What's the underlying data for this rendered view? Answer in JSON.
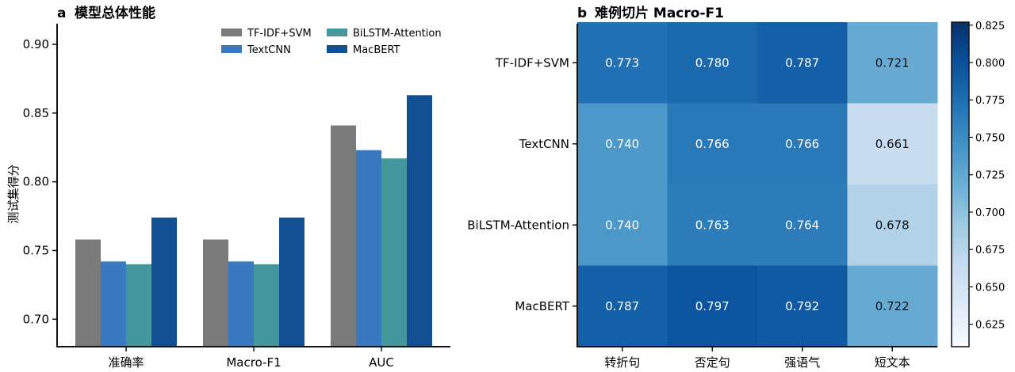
{
  "chart_data": [
    {
      "type": "bar",
      "panel_letter": "a",
      "title": "模型总体性能",
      "ylabel": "测试集得分",
      "categories": [
        "准确率",
        "Macro-F1",
        "AUC"
      ],
      "ylim": [
        0.68,
        0.915
      ],
      "yticks": [
        0.7,
        0.75,
        0.8,
        0.85,
        0.9
      ],
      "ytick_labels": [
        "0.70",
        "0.75",
        "0.80",
        "0.85",
        "0.90"
      ],
      "legend_position": "top-right",
      "series": [
        {
          "name": "TF-IDF+SVM",
          "color": "#7a7a7a",
          "values": [
            0.758,
            0.758,
            0.841
          ]
        },
        {
          "name": "TextCNN",
          "color": "#3a78c0",
          "values": [
            0.742,
            0.742,
            0.823
          ]
        },
        {
          "name": "BiLSTM-Attention",
          "color": "#43979d",
          "values": [
            0.74,
            0.74,
            0.817
          ]
        },
        {
          "name": "MacBERT",
          "color": "#134f93",
          "values": [
            0.774,
            0.774,
            0.863
          ]
        }
      ]
    },
    {
      "type": "heatmap",
      "panel_letter": "b",
      "title": "难例切片 Macro-F1",
      "rows": [
        "TF-IDF+SVM",
        "TextCNN",
        "BiLSTM-Attention",
        "MacBERT"
      ],
      "columns": [
        "转折句",
        "否定句",
        "强语气",
        "短文本"
      ],
      "values": [
        [
          0.773,
          0.78,
          0.787,
          0.721
        ],
        [
          0.74,
          0.766,
          0.766,
          0.661
        ],
        [
          0.74,
          0.763,
          0.764,
          0.678
        ],
        [
          0.787,
          0.797,
          0.792,
          0.722
        ]
      ],
      "value_labels": [
        [
          "0.773",
          "0.780",
          "0.787",
          "0.721"
        ],
        [
          "0.740",
          "0.766",
          "0.766",
          "0.661"
        ],
        [
          "0.740",
          "0.763",
          "0.764",
          "0.678"
        ],
        [
          "0.787",
          "0.797",
          "0.792",
          "0.722"
        ]
      ],
      "colorbar": {
        "range": [
          0.61,
          0.827
        ],
        "ticks": [
          0.625,
          0.65,
          0.675,
          0.7,
          0.725,
          0.75,
          0.775,
          0.8,
          0.825
        ],
        "tick_labels": [
          "0.625",
          "0.650",
          "0.675",
          "0.700",
          "0.725",
          "0.750",
          "0.775",
          "0.800",
          "0.825"
        ]
      }
    }
  ]
}
